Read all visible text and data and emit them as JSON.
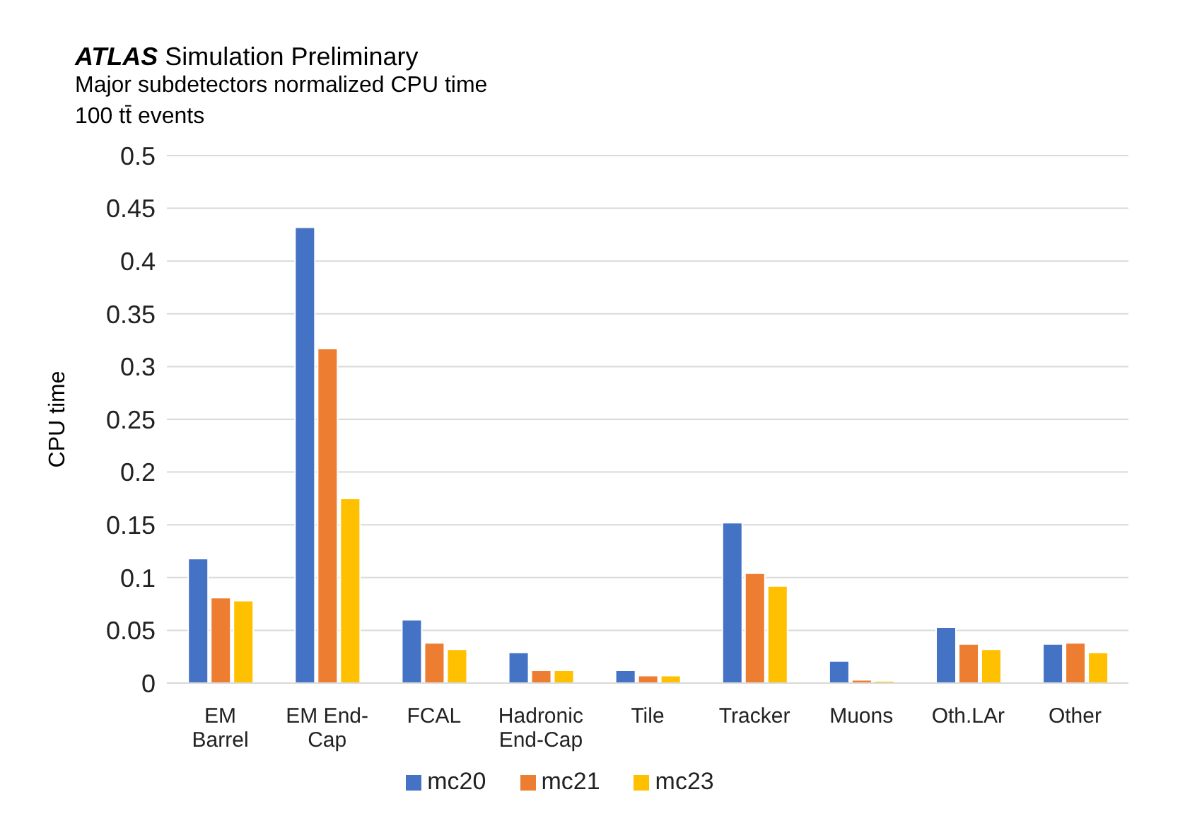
{
  "chart_data": {
    "type": "bar",
    "title": "ATLAS Simulation Preliminary",
    "subtitle": "Major subdetectors normalized CPU time",
    "annotations": [
      "100 tt̄ events"
    ],
    "ylabel": "CPU time",
    "categories": [
      "EM Barrel",
      "EM End-Cap",
      "FCAL",
      "Hadronic End-Cap",
      "Tile",
      "Tracker",
      "Muons",
      "Oth.LAr",
      "Other"
    ],
    "series": [
      {
        "name": "mc20",
        "color": "#4472c4",
        "values": [
          0.118,
          0.432,
          0.06,
          0.029,
          0.012,
          0.152,
          0.021,
          0.053,
          0.037
        ]
      },
      {
        "name": "mc21",
        "color": "#ed7d31",
        "values": [
          0.081,
          0.317,
          0.038,
          0.012,
          0.007,
          0.104,
          0.003,
          0.037,
          0.038
        ]
      },
      {
        "name": "mc23",
        "color": "#ffc000",
        "values": [
          0.078,
          0.175,
          0.032,
          0.012,
          0.007,
          0.092,
          0.002,
          0.032,
          0.029
        ]
      }
    ],
    "ylim": [
      0,
      0.5
    ],
    "yticks": [
      0,
      0.05,
      0.1,
      0.15,
      0.2,
      0.25,
      0.3,
      0.35,
      0.4,
      0.45,
      0.5
    ],
    "grid": "y",
    "legend": "bottom"
  }
}
